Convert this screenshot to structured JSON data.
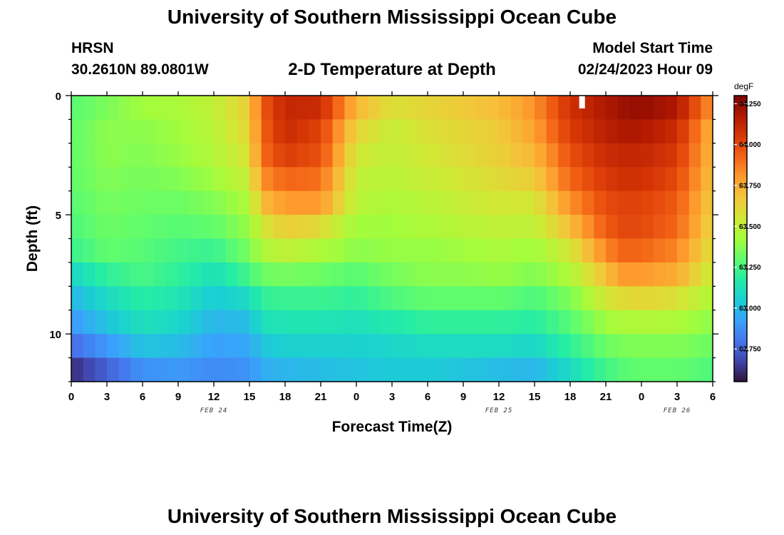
{
  "header": {
    "title": "University of Southern Mississippi Ocean Cube",
    "station": "HRSN",
    "coordinates": "30.2610N  89.0801W",
    "subtitle": "2-D Temperature at Depth",
    "model_start_label": "Model Start Time",
    "model_start_value": "02/24/2023 Hour 09"
  },
  "footer": {
    "title": "University of Southern Mississippi Ocean Cube"
  },
  "chart_data": {
    "type": "heatmap",
    "title": "2-D Temperature at Depth",
    "xlabel": "Forecast Time(Z)",
    "ylabel": "Depth (ft)",
    "x_hours_range": [
      0,
      54
    ],
    "x_tick_hours": [
      0,
      3,
      6,
      9,
      12,
      15,
      18,
      21,
      24,
      27,
      30,
      33,
      36,
      39,
      42,
      45,
      48,
      51,
      54
    ],
    "x_tick_labels": [
      "0",
      "3",
      "6",
      "9",
      "12",
      "15",
      "18",
      "21",
      "0",
      "3",
      "6",
      "9",
      "12",
      "15",
      "18",
      "21",
      "0",
      "3",
      "6"
    ],
    "date_labels": [
      {
        "text": "FEB 24",
        "hour": 12
      },
      {
        "text": "FEB 25",
        "hour": 36
      },
      {
        "text": "FEB 26",
        "hour": 51
      }
    ],
    "y_range_ft": [
      0,
      12
    ],
    "y_tick_values": [
      0,
      5,
      10
    ],
    "y_tick_labels": [
      "0",
      "5",
      "10"
    ],
    "colorbar": {
      "unit": "degF",
      "min": 62.55,
      "max": 64.3,
      "tick_values": [
        62.75,
        63.0,
        63.25,
        63.5,
        63.75,
        64.0,
        64.25
      ],
      "tick_labels": [
        "62.750",
        "63.000",
        "63.250",
        "63.500",
        "63.750",
        "64.000",
        "64.250"
      ],
      "stops": [
        "#30123b",
        "#4145ab",
        "#4675ed",
        "#39a2fc",
        "#1bcfd4",
        "#24eca6",
        "#61fc6c",
        "#a4fc3b",
        "#d1e834",
        "#f3c63a",
        "#fe9b2d",
        "#f36315",
        "#d93806",
        "#b11901",
        "#7a0403"
      ]
    },
    "depth_profile_ft": [
      0.5,
      1.5,
      2.5,
      3.5,
      4.5,
      5.5,
      6.5,
      7.5,
      8.5,
      9.5,
      10.5,
      11.5
    ],
    "profile_hours": [
      0,
      3,
      6,
      9,
      12,
      15,
      16,
      18,
      21,
      24,
      27,
      30,
      33,
      36,
      39,
      42,
      45,
      46.5,
      48,
      51,
      54
    ],
    "temperature_degF": [
      [
        63.28,
        63.35,
        63.42,
        63.44,
        63.5,
        63.65,
        63.95,
        64.12,
        64.1,
        63.72,
        63.58,
        63.62,
        63.66,
        63.7,
        63.82,
        64.08,
        64.18,
        64.22,
        64.24,
        64.18,
        63.8
      ],
      [
        63.3,
        63.38,
        63.38,
        63.42,
        63.48,
        63.62,
        63.92,
        64.1,
        64.02,
        63.62,
        63.52,
        63.58,
        63.62,
        63.66,
        63.78,
        64.04,
        64.15,
        64.18,
        64.18,
        64.1,
        63.72
      ],
      [
        63.3,
        63.38,
        63.36,
        63.4,
        63.46,
        63.58,
        63.9,
        64.04,
        63.98,
        63.55,
        63.5,
        63.55,
        63.6,
        63.64,
        63.72,
        63.98,
        64.1,
        64.12,
        64.12,
        64.05,
        63.7
      ],
      [
        63.3,
        63.36,
        63.34,
        63.36,
        63.42,
        63.52,
        63.82,
        63.92,
        63.9,
        63.5,
        63.48,
        63.52,
        63.56,
        63.6,
        63.65,
        63.92,
        64.05,
        64.08,
        64.08,
        64.0,
        63.68
      ],
      [
        63.28,
        63.34,
        63.32,
        63.32,
        63.36,
        63.45,
        63.7,
        63.8,
        63.8,
        63.48,
        63.45,
        63.48,
        63.52,
        63.55,
        63.56,
        63.82,
        64.0,
        64.02,
        64.02,
        63.95,
        63.65
      ],
      [
        63.26,
        63.32,
        63.3,
        63.28,
        63.3,
        63.4,
        63.55,
        63.65,
        63.6,
        63.42,
        63.42,
        63.45,
        63.48,
        63.5,
        63.5,
        63.7,
        63.95,
        64.0,
        64.0,
        63.92,
        63.62
      ],
      [
        63.22,
        63.3,
        63.28,
        63.24,
        63.22,
        63.34,
        63.45,
        63.5,
        63.45,
        63.38,
        63.4,
        63.4,
        63.42,
        63.44,
        63.42,
        63.55,
        63.85,
        63.92,
        63.92,
        63.85,
        63.58
      ],
      [
        63.08,
        63.2,
        63.25,
        63.2,
        63.12,
        63.24,
        63.32,
        63.34,
        63.32,
        63.28,
        63.34,
        63.38,
        63.38,
        63.4,
        63.36,
        63.45,
        63.7,
        63.8,
        63.8,
        63.75,
        63.52
      ],
      [
        62.98,
        63.1,
        63.18,
        63.14,
        63.04,
        63.1,
        63.2,
        63.22,
        63.22,
        63.2,
        63.26,
        63.3,
        63.3,
        63.3,
        63.26,
        63.35,
        63.55,
        63.6,
        63.62,
        63.58,
        63.45
      ],
      [
        62.9,
        63.02,
        63.12,
        63.08,
        62.98,
        63.0,
        63.12,
        63.14,
        63.14,
        63.12,
        63.16,
        63.2,
        63.2,
        63.2,
        63.18,
        63.28,
        63.42,
        63.45,
        63.46,
        63.45,
        63.38
      ],
      [
        62.78,
        62.9,
        63.02,
        63.0,
        62.92,
        62.94,
        63.02,
        63.06,
        63.06,
        63.06,
        63.08,
        63.1,
        63.1,
        63.1,
        63.08,
        63.2,
        63.32,
        63.35,
        63.36,
        63.36,
        63.32
      ],
      [
        62.62,
        62.75,
        62.88,
        62.9,
        62.86,
        62.88,
        62.95,
        62.98,
        63.0,
        63.02,
        63.04,
        63.04,
        63.02,
        63.0,
        62.98,
        63.1,
        63.24,
        63.28,
        63.3,
        63.3,
        63.26
      ]
    ],
    "current_time_marker_hour": 43
  }
}
